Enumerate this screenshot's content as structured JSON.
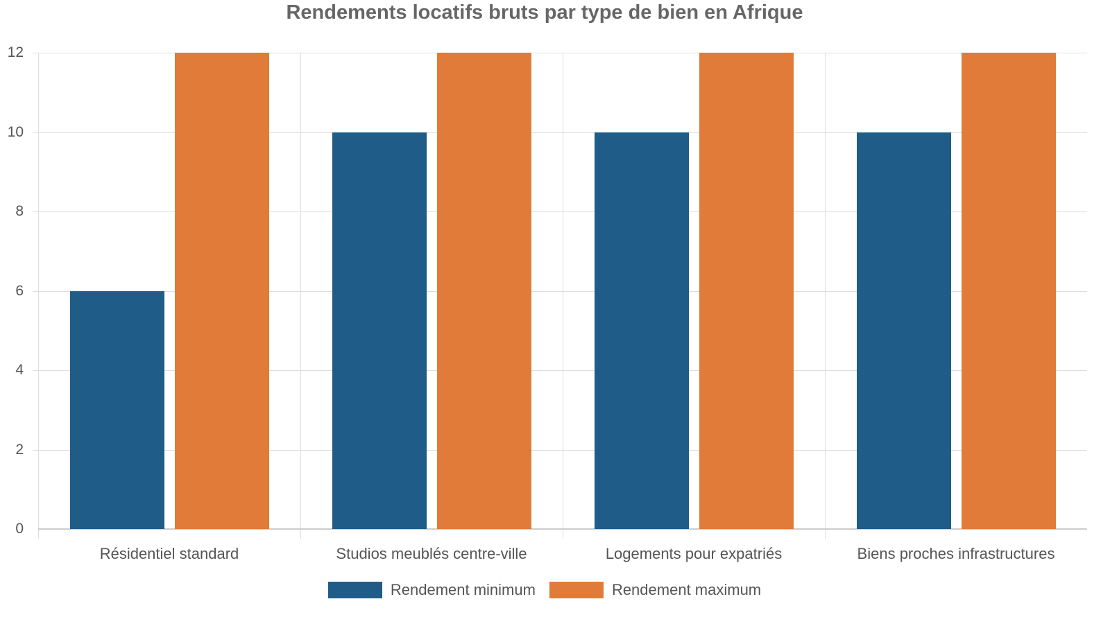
{
  "chart_data": {
    "type": "bar",
    "title": "Rendements locatifs bruts par type de bien en Afrique",
    "xlabel": "",
    "ylabel": "",
    "ylim": [
      0,
      12
    ],
    "yticks": [
      0,
      2,
      4,
      6,
      8,
      10,
      12
    ],
    "grid": true,
    "legend_position": "bottom",
    "categories": [
      "Résidentiel standard",
      "Studios meublés centre-ville",
      "Logements pour expatriés",
      "Biens proches infrastructures"
    ],
    "series": [
      {
        "name": "Rendement minimum",
        "color": "#1f5c87",
        "values": [
          6,
          10,
          10,
          10
        ]
      },
      {
        "name": "Rendement maximum",
        "color": "#e07b39",
        "values": [
          12,
          12,
          12,
          12
        ]
      }
    ]
  },
  "ytick_labels": [
    "0",
    "2",
    "4",
    "6",
    "8",
    "10",
    "12"
  ]
}
